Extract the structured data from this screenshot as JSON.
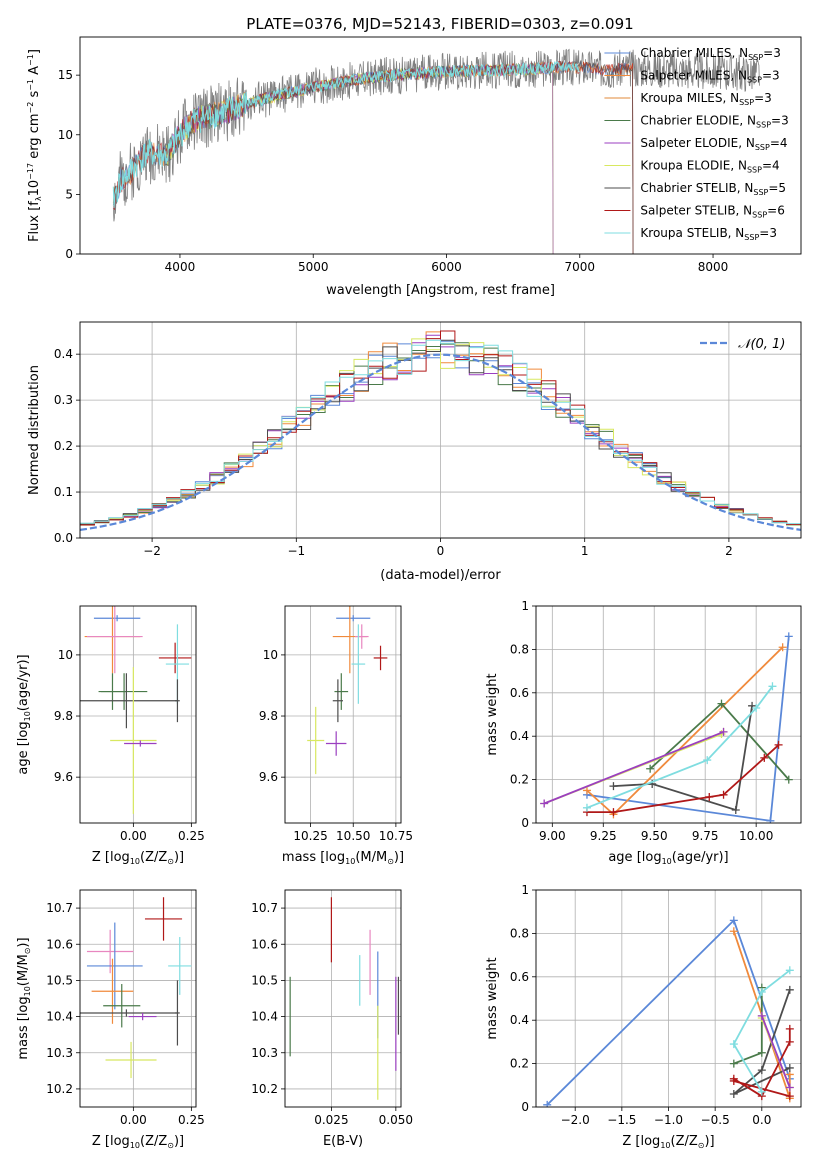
{
  "title": "PLATE=0376, MJD=52143, FIBERID=0303, z=0.091",
  "palette": {
    "chabrier_miles": "#5b88d8",
    "salpeter_miles": "#f08a3c",
    "kroupa_miles": "#e0883a",
    "chabrier_elodie": "#4a7a4a",
    "salpeter_elodie": "#9b3fc0",
    "kroupa_elodie": "#d8e860",
    "chabrier_stelib": "#4d4d4d",
    "salpeter_stelib": "#b01818",
    "kroupa_stelib": "#7fdde0",
    "extra_pink": "#e887c0",
    "obs_grey": "#808080",
    "gauss": "#5b88d8"
  },
  "chart_data": [
    {
      "id": "spectrum",
      "type": "line",
      "xlabel": "wavelength [Angstrom, rest frame]",
      "ylabel_parts": [
        "Flux [f",
        "λ",
        "10",
        "−17",
        " erg cm",
        "−2",
        " s",
        "−1",
        " A",
        "−1",
        "]"
      ],
      "xlim": [
        3250,
        8660
      ],
      "ylim": [
        0,
        18.2
      ],
      "xticks": [
        4000,
        5000,
        6000,
        7000,
        8000
      ],
      "yticks": [
        0,
        5,
        10,
        15
      ],
      "spectrum_anchors_x": [
        3500,
        3550,
        3650,
        3750,
        3900,
        4000,
        4100,
        4300,
        4500,
        4700,
        5000,
        5300,
        5600,
        6000,
        6300,
        6600,
        6900,
        7200,
        7500,
        7800,
        8000,
        8300
      ],
      "spectrum_anchors_y": [
        4.5,
        6.0,
        7.2,
        8.5,
        8.2,
        10.0,
        11.2,
        11.8,
        12.6,
        13.2,
        14.0,
        14.6,
        15.0,
        15.3,
        15.4,
        15.5,
        15.7,
        15.5,
        15.6,
        15.4,
        15.3,
        15.2
      ],
      "legend": [
        {
          "label": "Chabrier MILES, N",
          "sub": "SSP",
          "tail": "=3",
          "color": "#5b88d8"
        },
        {
          "label": "Salpeter MILES, N",
          "sub": "SSP",
          "tail": "=3",
          "color": "#f08a3c"
        },
        {
          "label": "Kroupa MILES, N",
          "sub": "SSP",
          "tail": "=3",
          "color": "#e0883a"
        },
        {
          "label": "Chabrier ELODIE, N",
          "sub": "SSP",
          "tail": "=3",
          "color": "#4a7a4a"
        },
        {
          "label": "Salpeter ELODIE, N",
          "sub": "SSP",
          "tail": "=4",
          "color": "#9b3fc0"
        },
        {
          "label": "Kroupa ELODIE, N",
          "sub": "SSP",
          "tail": "=4",
          "color": "#d8e860"
        },
        {
          "label": "Chabrier STELIB, N",
          "sub": "SSP",
          "tail": "=5",
          "color": "#4d4d4d"
        },
        {
          "label": "Salpeter STELIB, N",
          "sub": "SSP",
          "tail": "=6",
          "color": "#b01818"
        },
        {
          "label": "Kroupa STELIB, N",
          "sub": "SSP",
          "tail": "=3",
          "color": "#7fdde0"
        }
      ]
    },
    {
      "id": "residuals",
      "type": "histogram",
      "xlabel": "(data-model)/error",
      "ylabel": "Normed distribution",
      "xlim": [
        -2.5,
        2.5
      ],
      "ylim": [
        0,
        0.47
      ],
      "xticks": [
        -2,
        -1,
        0,
        1,
        2
      ],
      "xticklabels": [
        "−2",
        "−1",
        "0",
        "1",
        "2"
      ],
      "yticks": [
        0.0,
        0.1,
        0.2,
        0.3,
        0.4
      ],
      "yticklabels": [
        "0.0",
        "0.1",
        "0.2",
        "0.3",
        "0.4"
      ],
      "bin_width": 0.1,
      "legend": {
        "label": "𝒩(0, 1)",
        "color": "#5b88d8"
      },
      "series": [
        {
          "color": "#5b88d8",
          "seed": 3
        },
        {
          "color": "#f08a3c",
          "seed": 7
        },
        {
          "color": "#4a7a4a",
          "seed": 11
        },
        {
          "color": "#9b3fc0",
          "seed": 19
        },
        {
          "color": "#d8e860",
          "seed": 23
        },
        {
          "color": "#4d4d4d",
          "seed": 29
        },
        {
          "color": "#b01818",
          "seed": 31
        },
        {
          "color": "#7fdde0",
          "seed": 37
        }
      ]
    },
    {
      "id": "age_vs_Z",
      "type": "errorbar",
      "xlabel_parts": [
        "Z [log",
        "10",
        "(Z/Z",
        "⊙",
        ")]"
      ],
      "ylabel_parts": [
        "age  [log",
        "10",
        "(age/yr)]"
      ],
      "xlim": [
        -0.23,
        0.27
      ],
      "ylim": [
        9.45,
        10.16
      ],
      "xticks": [
        0.0,
        0.25
      ],
      "xticklabels": [
        "0.00",
        "0.25"
      ],
      "yticks": [
        9.6,
        9.8,
        10.0
      ],
      "points": [
        {
          "x": -0.07,
          "xerr": 0.1,
          "y": 10.12,
          "yerr": 0.01,
          "color": "#5b88d8"
        },
        {
          "x": -0.09,
          "xerr": 0.12,
          "y": 10.06,
          "yerr": 0.12,
          "color": "#f08a3c"
        },
        {
          "x": -0.08,
          "xerr": 0.12,
          "y": 10.06,
          "yerr": 0.12,
          "color": "#e887c0"
        },
        {
          "x": 0.18,
          "xerr": 0.07,
          "y": 9.99,
          "yerr": 0.05,
          "color": "#b01818"
        },
        {
          "x": 0.19,
          "xerr": 0.05,
          "y": 9.97,
          "yerr": 0.13,
          "color": "#7fdde0"
        },
        {
          "x": -0.09,
          "xerr": 0.06,
          "y": 9.88,
          "yerr": 0.06,
          "color": "#4a7a4a"
        },
        {
          "x": -0.04,
          "xerr": 0.1,
          "y": 9.88,
          "yerr": 0.06,
          "color": "#4a7a4a"
        },
        {
          "x": 0.19,
          "xerr": 0.01,
          "y": 9.85,
          "yerr": 0.07,
          "color": "#4d4d4d"
        },
        {
          "x": -0.03,
          "xerr": 0.22,
          "y": 9.85,
          "yerr": 0.09,
          "color": "#4d4d4d"
        },
        {
          "x": 0.0,
          "xerr": 0.1,
          "y": 9.72,
          "yerr": 0.24,
          "color": "#d8e860"
        },
        {
          "x": 0.03,
          "xerr": 0.07,
          "y": 9.71,
          "yerr": 0.01,
          "color": "#9b3fc0"
        }
      ]
    },
    {
      "id": "age_vs_mass",
      "type": "errorbar",
      "xlabel_parts": [
        "mass [log",
        "10",
        "(M/M",
        "⊙",
        ")]"
      ],
      "ylabel_parts": [],
      "xlim": [
        10.1,
        10.78
      ],
      "ylim": [
        9.45,
        10.16
      ],
      "xticks": [
        10.25,
        10.5,
        10.75
      ],
      "xticklabels": [
        "10.25",
        "10.50",
        "10.75"
      ],
      "yticks": [
        9.6,
        9.8,
        10.0
      ],
      "points": [
        {
          "x": 10.5,
          "xerr": 0.1,
          "y": 10.12,
          "yerr": 0.01,
          "color": "#5b88d8"
        },
        {
          "x": 10.48,
          "xerr": 0.1,
          "y": 10.06,
          "yerr": 0.12,
          "color": "#f08a3c"
        },
        {
          "x": 10.55,
          "xerr": 0.04,
          "y": 10.06,
          "yerr": 0.04,
          "color": "#e887c0"
        },
        {
          "x": 10.66,
          "xerr": 0.04,
          "y": 9.99,
          "yerr": 0.04,
          "color": "#b01818"
        },
        {
          "x": 10.53,
          "xerr": 0.04,
          "y": 9.97,
          "yerr": 0.13,
          "color": "#7fdde0"
        },
        {
          "x": 10.43,
          "xerr": 0.04,
          "y": 9.88,
          "yerr": 0.06,
          "color": "#4a7a4a"
        },
        {
          "x": 10.41,
          "xerr": 0.03,
          "y": 9.85,
          "yerr": 0.07,
          "color": "#4d4d4d"
        },
        {
          "x": 10.28,
          "xerr": 0.05,
          "y": 9.72,
          "yerr": 0.11,
          "color": "#d8e860"
        },
        {
          "x": 10.4,
          "xerr": 0.06,
          "y": 9.71,
          "yerr": 0.04,
          "color": "#9b3fc0"
        }
      ]
    },
    {
      "id": "weight_vs_age",
      "type": "line",
      "xlabel_parts": [
        "age  [log",
        "10",
        "(age/yr)]"
      ],
      "ylabel": "mass weight",
      "xlim": [
        8.92,
        10.22
      ],
      "ylim": [
        0.0,
        1.0
      ],
      "xticks": [
        9.0,
        9.25,
        9.5,
        9.75,
        10.0
      ],
      "xticklabels": [
        "9.00",
        "9.25",
        "9.50",
        "9.75",
        "10.00"
      ],
      "yticks": [
        0.0,
        0.2,
        0.4,
        0.6,
        0.8,
        1.0
      ],
      "series": [
        {
          "color": "#5b88d8",
          "x": [
            10.16,
            10.07,
            9.17
          ],
          "y": [
            0.86,
            0.01,
            0.13
          ]
        },
        {
          "color": "#f08a3c",
          "x": [
            10.13,
            9.3,
            9.17
          ],
          "y": [
            0.81,
            0.04,
            0.15
          ]
        },
        {
          "color": "#4a7a4a",
          "x": [
            10.16,
            9.83,
            9.48
          ],
          "y": [
            0.2,
            0.55,
            0.25
          ]
        },
        {
          "color": "#4d4d4d",
          "x": [
            9.98,
            9.9,
            9.49,
            9.3
          ],
          "y": [
            0.54,
            0.06,
            0.18,
            0.17
          ]
        },
        {
          "color": "#b01818",
          "x": [
            10.11,
            10.04,
            9.84,
            9.77,
            9.3,
            9.17
          ],
          "y": [
            0.36,
            0.3,
            0.13,
            0.12,
            0.05,
            0.05
          ]
        },
        {
          "color": "#7fdde0",
          "x": [
            10.08,
            10.0,
            9.76,
            9.17
          ],
          "y": [
            0.63,
            0.53,
            0.29,
            0.07
          ]
        },
        {
          "color": "#d8e860",
          "x": [
            9.84,
            9.83,
            8.96
          ],
          "y": [
            0.42,
            0.41,
            0.09
          ]
        },
        {
          "color": "#9b3fc0",
          "x": [
            9.84,
            8.96
          ],
          "y": [
            0.42,
            0.09
          ]
        }
      ]
    },
    {
      "id": "mass_vs_Z",
      "type": "errorbar",
      "xlabel_parts": [
        "Z [log",
        "10",
        "(Z/Z",
        "⊙",
        ")]"
      ],
      "ylabel_parts": [
        "mass [log",
        "10",
        "(M/M",
        "⊙",
        ")]"
      ],
      "xlim": [
        -0.23,
        0.27
      ],
      "ylim": [
        10.15,
        10.75
      ],
      "xticks": [
        0.0,
        0.25
      ],
      "xticklabels": [
        "0.00",
        "0.25"
      ],
      "yticks": [
        10.2,
        10.3,
        10.4,
        10.5,
        10.6,
        10.7
      ],
      "points": [
        {
          "x": 0.13,
          "xerr": 0.08,
          "y": 10.67,
          "yerr": 0.06,
          "color": "#b01818"
        },
        {
          "x": -0.1,
          "xerr": 0.1,
          "y": 10.58,
          "yerr": 0.06,
          "color": "#e887c0"
        },
        {
          "x": -0.08,
          "xerr": 0.12,
          "y": 10.54,
          "yerr": 0.12,
          "color": "#5b88d8"
        },
        {
          "x": 0.2,
          "xerr": 0.05,
          "y": 10.54,
          "yerr": 0.08,
          "color": "#7fdde0"
        },
        {
          "x": -0.09,
          "xerr": 0.09,
          "y": 10.47,
          "yerr": 0.09,
          "color": "#f08a3c"
        },
        {
          "x": -0.05,
          "xerr": 0.08,
          "y": 10.43,
          "yerr": 0.06,
          "color": "#4a7a4a"
        },
        {
          "x": 0.19,
          "xerr": 0.01,
          "y": 10.41,
          "yerr": 0.09,
          "color": "#4d4d4d"
        },
        {
          "x": -0.03,
          "xerr": 0.22,
          "y": 10.41,
          "yerr": 0.01,
          "color": "#4d4d4d"
        },
        {
          "x": 0.04,
          "xerr": 0.06,
          "y": 10.4,
          "yerr": 0.01,
          "color": "#9b3fc0"
        },
        {
          "x": -0.01,
          "xerr": 0.11,
          "y": 10.28,
          "yerr": 0.05,
          "color": "#d8e860"
        }
      ]
    },
    {
      "id": "mass_vs_ebv",
      "type": "errorbar",
      "xlabel": "E(B-V)",
      "ylabel_parts": [],
      "xlim": [
        0.007,
        0.052
      ],
      "ylim": [
        10.15,
        10.75
      ],
      "xticks": [
        0.025,
        0.05
      ],
      "xticklabels": [
        "0.025",
        "0.050"
      ],
      "yticks": [
        10.2,
        10.3,
        10.4,
        10.5,
        10.6,
        10.7
      ],
      "points": [
        {
          "x": 0.009,
          "xerr": 0,
          "y": 10.4,
          "yerr": 0.11,
          "color": "#4a7a4a"
        },
        {
          "x": 0.025,
          "xerr": 0,
          "y": 10.64,
          "yerr": 0.09,
          "color": "#b01818"
        },
        {
          "x": 0.036,
          "xerr": 0,
          "y": 10.5,
          "yerr": 0.07,
          "color": "#7fdde0"
        },
        {
          "x": 0.04,
          "xerr": 0,
          "y": 10.55,
          "yerr": 0.09,
          "color": "#e887c0"
        },
        {
          "x": 0.043,
          "xerr": 0,
          "y": 10.46,
          "yerr": 0.12,
          "color": "#5b88d8"
        },
        {
          "x": 0.043,
          "xerr": 0,
          "y": 10.3,
          "yerr": 0.13,
          "color": "#d8e860"
        },
        {
          "x": 0.05,
          "xerr": 0,
          "y": 10.38,
          "yerr": 0.13,
          "color": "#9b3fc0"
        },
        {
          "x": 0.051,
          "xerr": 0,
          "y": 10.43,
          "yerr": 0.08,
          "color": "#4d4d4d"
        }
      ]
    },
    {
      "id": "weight_vs_Z",
      "type": "line",
      "xlabel_parts": [
        "Z [log",
        "10",
        "(Z/Z",
        "⊙",
        ")]"
      ],
      "ylabel": "mass weight",
      "xlim": [
        -2.42,
        0.42
      ],
      "ylim": [
        0.0,
        1.0
      ],
      "xticks": [
        -2.0,
        -1.5,
        -1.0,
        -0.5,
        0.0
      ],
      "xticklabels": [
        "−2.0",
        "−1.5",
        "−1.0",
        "−0.5",
        "0.0"
      ],
      "yticks": [
        0.0,
        0.2,
        0.4,
        0.6,
        0.8,
        1.0
      ],
      "series": [
        {
          "color": "#5b88d8",
          "x": [
            -2.3,
            -0.3,
            0.3
          ],
          "y": [
            0.01,
            0.86,
            0.13
          ]
        },
        {
          "color": "#f08a3c",
          "x": [
            -0.3,
            0.3,
            0.3
          ],
          "y": [
            0.81,
            0.04,
            0.15
          ]
        },
        {
          "color": "#4a7a4a",
          "x": [
            0.0,
            0.0,
            -0.3
          ],
          "y": [
            0.55,
            0.25,
            0.2
          ]
        },
        {
          "color": "#4d4d4d",
          "x": [
            0.3,
            0.0,
            -0.3,
            0.3
          ],
          "y": [
            0.54,
            0.17,
            0.06,
            0.18
          ]
        },
        {
          "color": "#b01818",
          "x": [
            0.3,
            0.3,
            0.0,
            -0.3,
            -0.3,
            0.3
          ],
          "y": [
            0.36,
            0.3,
            0.05,
            0.13,
            0.12,
            0.05
          ]
        },
        {
          "color": "#7fdde0",
          "x": [
            0.3,
            0.0,
            -0.3,
            0.0
          ],
          "y": [
            0.63,
            0.53,
            0.29,
            0.07
          ]
        },
        {
          "color": "#d8e860",
          "x": [
            0.0,
            0.0,
            0.3
          ],
          "y": [
            0.42,
            0.41,
            0.09
          ]
        },
        {
          "color": "#9b3fc0",
          "x": [
            0.0,
            0.3
          ],
          "y": [
            0.42,
            0.09
          ]
        }
      ]
    }
  ]
}
